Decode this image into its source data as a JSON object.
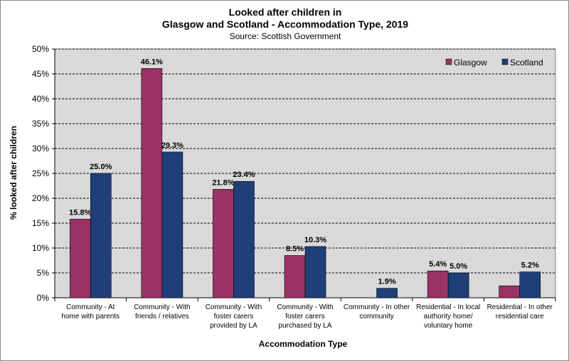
{
  "chart_data": {
    "type": "bar",
    "title": [
      "Looked after children in",
      "Glasgow and Scotland - Accommodation Type, 2019"
    ],
    "subtitle": "Source: Scottish Government",
    "xlabel": "Accommodation Type",
    "ylabel": "% looked after children",
    "ylim": [
      0,
      50
    ],
    "yticks": [
      0,
      5,
      10,
      15,
      20,
      25,
      30,
      35,
      40,
      45,
      50
    ],
    "ytick_labels": [
      "0%",
      "5%",
      "10%",
      "15%",
      "20%",
      "25%",
      "30%",
      "35%",
      "40%",
      "45%",
      "50%"
    ],
    "grid": true,
    "legend_position": "top-right",
    "categories": [
      [
        "Community - At",
        "home with parents"
      ],
      [
        "Community - With",
        "friends / relatives"
      ],
      [
        "Community - With",
        "foster carers",
        "provided by LA"
      ],
      [
        "Community - With",
        "foster carers",
        "purchased by LA"
      ],
      [
        "Community - In other",
        "community"
      ],
      [
        "Residential - In local",
        "authority home/",
        "voluntary home"
      ],
      [
        "Residential - In other",
        "residential care"
      ]
    ],
    "series": [
      {
        "name": "Glasgow",
        "color": "#993366",
        "values": [
          15.8,
          46.1,
          21.8,
          8.5,
          0,
          5.4,
          2.4
        ],
        "labels": [
          "15.8%",
          "46.1%",
          "21.8%",
          "8.5%",
          "",
          "5.4%",
          ""
        ]
      },
      {
        "name": "Scotland",
        "color": "#1f3f7a",
        "values": [
          25.0,
          29.3,
          23.4,
          10.3,
          1.9,
          5.0,
          5.2
        ],
        "labels": [
          "25.0%",
          "29.3%",
          "23.4%",
          "10.3%",
          "1.9%",
          "5.0%",
          "5.2%"
        ]
      }
    ],
    "colors": {
      "plot_background": "#d9d9d9",
      "grid": "#000000"
    }
  }
}
